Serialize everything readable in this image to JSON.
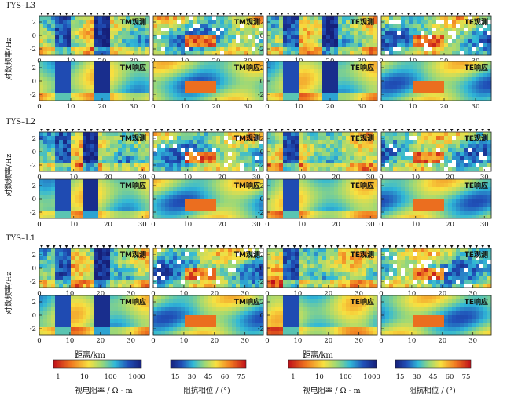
{
  "profiles": [
    {
      "id": "TYS–L3",
      "x_max": 35,
      "x_ticks": [
        0,
        10,
        20,
        30
      ]
    },
    {
      "id": "TYS–L2",
      "x_max": 32,
      "x_ticks": [
        0,
        10,
        20,
        30
      ]
    },
    {
      "id": "TYS–L1",
      "x_max": 36,
      "x_ticks": [
        0,
        10,
        20,
        30
      ]
    }
  ],
  "y_axis_label": "对数频率/Hz",
  "y_ticks": [
    2,
    0,
    -2
  ],
  "x_axis_label": "距离/km",
  "panel_labels": {
    "tm_observed": "TM观测",
    "te_observed": "TE观测",
    "tm_response": "TM响应",
    "te_response": "TE响应"
  },
  "colorbars": [
    {
      "title": "视电阻率 / Ω · m",
      "ticks": [
        "1",
        "10",
        "100",
        "1000"
      ],
      "palette": "red-yellow-green-blue"
    },
    {
      "title": "阻抗相位 / (°)",
      "ticks": [
        "15",
        "30",
        "45",
        "60",
        "75"
      ],
      "palette": "blue-green-yellow-red"
    },
    {
      "title": "视电阻率 / Ω · m",
      "ticks": [
        "1",
        "10",
        "100",
        "1000"
      ],
      "palette": "red-yellow-green-blue"
    },
    {
      "title": "阻抗相位 / (°)",
      "ticks": [
        "15",
        "30",
        "45",
        "60",
        "75"
      ],
      "palette": "blue-green-yellow-red"
    }
  ]
}
